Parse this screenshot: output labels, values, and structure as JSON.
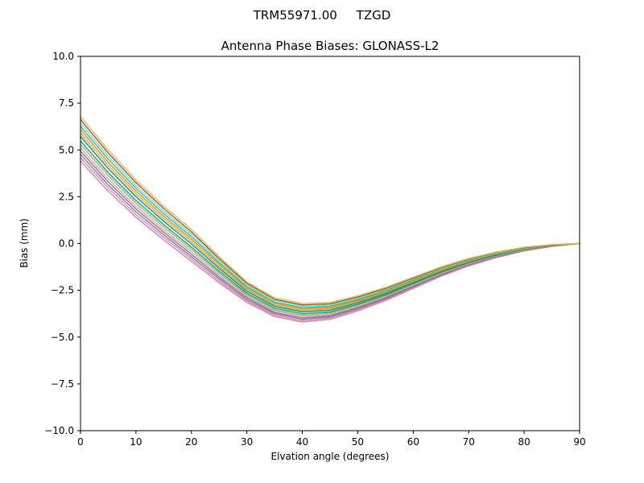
{
  "figure": {
    "suptitle": "TRM55971.00     TZGD",
    "background": "#ffffff",
    "axes_edge_color": "#000000"
  },
  "chart_data": {
    "type": "line",
    "title": "Antenna Phase Biases: GLONASS-L2",
    "suptitle": "TRM55971.00     TZGD",
    "xlabel": "Elvation angle (degrees)",
    "ylabel": "Bias (mm)",
    "xlim": [
      0,
      90
    ],
    "ylim": [
      -10,
      10
    ],
    "xticks": [
      0,
      10,
      20,
      30,
      40,
      50,
      60,
      70,
      80,
      90
    ],
    "yticks": [
      -10,
      -7.5,
      -5,
      -2.5,
      0,
      2.5,
      5,
      7.5,
      10
    ],
    "grid": false,
    "legend": "none",
    "x": [
      0,
      5,
      10,
      15,
      20,
      25,
      30,
      35,
      40,
      45,
      50,
      55,
      60,
      65,
      70,
      75,
      80,
      85,
      90
    ],
    "series": [
      {
        "name": "series-01",
        "color": "#e377c2",
        "values": [
          4.4,
          2.8,
          1.4,
          0.2,
          -0.95,
          -2.1,
          -3.15,
          -3.9,
          -4.2,
          -4.05,
          -3.6,
          -3.05,
          -2.4,
          -1.75,
          -1.2,
          -0.75,
          -0.4,
          -0.15,
          0
        ]
      },
      {
        "name": "series-02",
        "color": "#c49c94",
        "values": [
          4.58,
          2.97,
          1.55,
          0.34,
          -0.82,
          -2.0,
          -3.07,
          -3.83,
          -4.13,
          -3.98,
          -3.54,
          -3.0,
          -2.36,
          -1.71,
          -1.17,
          -0.73,
          -0.39,
          -0.14,
          0
        ]
      },
      {
        "name": "series-03",
        "color": "#9467bd",
        "values": [
          4.76,
          3.13,
          1.7,
          0.47,
          -0.7,
          -1.89,
          -2.99,
          -3.75,
          -4.05,
          -3.92,
          -3.48,
          -2.95,
          -2.31,
          -1.68,
          -1.14,
          -0.71,
          -0.37,
          -0.14,
          0
        ]
      },
      {
        "name": "series-04",
        "color": "#7f7f7f",
        "values": [
          4.94,
          3.3,
          1.85,
          0.61,
          -0.57,
          -1.79,
          -2.9,
          -3.68,
          -3.98,
          -3.85,
          -3.42,
          -2.89,
          -2.27,
          -1.64,
          -1.11,
          -0.68,
          -0.36,
          -0.13,
          0
        ]
      },
      {
        "name": "series-05",
        "color": "#ff9896",
        "values": [
          5.12,
          3.46,
          2.0,
          0.74,
          -0.44,
          -1.68,
          -2.82,
          -3.6,
          -3.9,
          -3.78,
          -3.36,
          -2.84,
          -2.22,
          -1.6,
          -1.08,
          -0.66,
          -0.34,
          -0.12,
          0
        ]
      },
      {
        "name": "series-06",
        "color": "#66c2a5",
        "values": [
          5.3,
          3.63,
          2.15,
          0.88,
          -0.31,
          -1.58,
          -2.74,
          -3.53,
          -3.83,
          -3.71,
          -3.3,
          -2.79,
          -2.18,
          -1.56,
          -1.05,
          -0.64,
          -0.33,
          -0.11,
          0
        ]
      },
      {
        "name": "series-07",
        "color": "#2ca02c",
        "values": [
          5.48,
          3.79,
          2.3,
          1.01,
          -0.19,
          -1.47,
          -2.66,
          -3.45,
          -3.75,
          -3.65,
          -3.24,
          -2.74,
          -2.13,
          -1.53,
          -1.02,
          -0.62,
          -0.31,
          -0.11,
          0
        ]
      },
      {
        "name": "series-08",
        "color": "#1f77b4",
        "values": [
          5.72,
          4.01,
          2.5,
          1.19,
          -0.02,
          -1.33,
          -2.55,
          -3.35,
          -3.65,
          -3.56,
          -3.16,
          -2.67,
          -2.07,
          -1.48,
          -0.98,
          -0.59,
          -0.29,
          -0.1,
          0
        ]
      },
      {
        "name": "series-09",
        "color": "#bcbd22",
        "values": [
          5.9,
          4.18,
          2.65,
          1.33,
          0.11,
          -1.23,
          -2.46,
          -3.28,
          -3.58,
          -3.49,
          -3.1,
          -2.61,
          -2.03,
          -1.44,
          -0.95,
          -0.56,
          -0.28,
          -0.09,
          0
        ]
      },
      {
        "name": "series-10",
        "color": "#ff7f0e",
        "values": [
          6.08,
          4.34,
          2.8,
          1.46,
          0.24,
          -1.12,
          -2.38,
          -3.2,
          -3.5,
          -3.42,
          -3.04,
          -2.56,
          -1.98,
          -1.4,
          -0.92,
          -0.54,
          -0.26,
          -0.08,
          0
        ]
      },
      {
        "name": "series-11",
        "color": "#17becf",
        "values": [
          6.26,
          4.51,
          2.95,
          1.6,
          0.37,
          -1.02,
          -2.3,
          -3.13,
          -3.43,
          -3.35,
          -2.98,
          -2.51,
          -1.94,
          -1.36,
          -0.89,
          -0.52,
          -0.25,
          -0.07,
          0
        ]
      },
      {
        "name": "series-12",
        "color": "#98df8a",
        "values": [
          6.44,
          4.67,
          3.1,
          1.73,
          0.5,
          -0.91,
          -2.22,
          -3.05,
          -3.35,
          -3.29,
          -2.92,
          -2.46,
          -1.89,
          -1.33,
          -0.86,
          -0.5,
          -0.23,
          -0.07,
          0
        ]
      },
      {
        "name": "series-13",
        "color": "#8c564b",
        "values": [
          6.62,
          4.84,
          3.25,
          1.87,
          0.62,
          -0.81,
          -2.13,
          -2.98,
          -3.28,
          -3.22,
          -2.86,
          -2.4,
          -1.85,
          -1.29,
          -0.83,
          -0.47,
          -0.22,
          -0.06,
          0
        ]
      },
      {
        "name": "series-14",
        "color": "#e7ba52",
        "values": [
          6.8,
          5.0,
          3.4,
          2.0,
          0.75,
          -0.7,
          -2.05,
          -2.9,
          -3.2,
          -3.15,
          -2.8,
          -2.35,
          -1.8,
          -1.25,
          -0.8,
          -0.45,
          -0.2,
          -0.05,
          0
        ]
      }
    ]
  }
}
